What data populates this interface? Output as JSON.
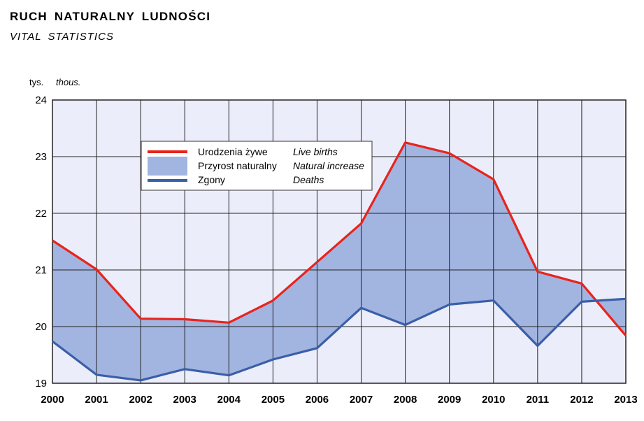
{
  "header": {
    "title": "RUCH  NATURALNY  LUDNOŚCI",
    "subtitle": "VITAL  STATISTICS"
  },
  "colors": {
    "births": "#e8241c",
    "deaths": "#3a5fa8",
    "increase_fill": "#a2b4e0",
    "plot_bg": "#ecedfa",
    "grid": "#222222"
  },
  "chart_data": {
    "type": "area",
    "unit_pl": "tys.",
    "unit_en": "thous.",
    "x": [
      "2000",
      "2001",
      "2002",
      "2003",
      "2004",
      "2005",
      "2006",
      "2007",
      "2008",
      "2009",
      "2010",
      "2011",
      "2012",
      "2013"
    ],
    "ylim": [
      19,
      24
    ],
    "yticks": [
      19,
      20,
      21,
      22,
      23,
      24
    ],
    "grid": true,
    "legend_position": "top-center",
    "series": [
      {
        "key": "births",
        "name_pl": "Urodzenia żywe",
        "name_en": "Live births",
        "color": "#e8241c",
        "values": [
          21.52,
          21.01,
          20.14,
          20.13,
          20.07,
          20.46,
          21.14,
          21.82,
          23.25,
          23.06,
          22.6,
          20.97,
          20.76,
          19.84
        ]
      },
      {
        "key": "deaths",
        "name_pl": "Zgony",
        "name_en": "Deaths",
        "color": "#3a5fa8",
        "values": [
          19.74,
          19.15,
          19.05,
          19.25,
          19.14,
          19.42,
          19.62,
          20.33,
          20.03,
          20.39,
          20.46,
          19.66,
          20.44,
          20.49
        ]
      }
    ],
    "area": {
      "name_pl": "Przyrost naturalny",
      "name_en": "Natural increase",
      "color": "#a2b4e0"
    }
  }
}
